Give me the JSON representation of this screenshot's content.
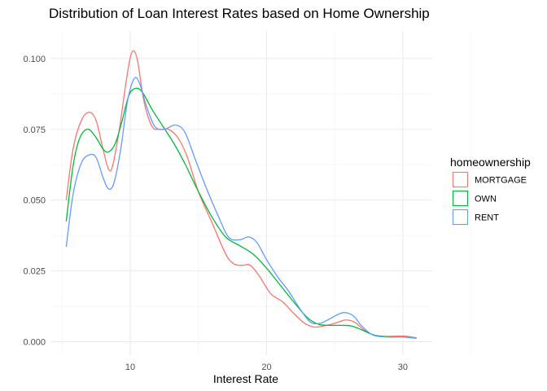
{
  "chart_data": {
    "type": "line",
    "title": "Distribution of Loan Interest Rates based on Home Ownership",
    "xlabel": "Interest Rate",
    "ylabel": "",
    "xlim": [
      5.3,
      31.0
    ],
    "ylim": [
      0.0,
      0.105
    ],
    "x_ticks": [
      10,
      20,
      30
    ],
    "y_ticks": [
      0.0,
      0.025,
      0.05,
      0.075,
      0.1
    ],
    "y_tick_labels": [
      "0.000",
      "0.025",
      "0.050",
      "0.075",
      "0.100"
    ],
    "grid": true,
    "legend": {
      "title": "homeownership",
      "placement": "right"
    },
    "series": [
      {
        "name": "MORTGAGE",
        "color": "#F8766D",
        "points": [
          [
            5.3,
            0.05
          ],
          [
            5.8,
            0.068
          ],
          [
            6.4,
            0.078
          ],
          [
            7.0,
            0.081
          ],
          [
            7.5,
            0.078
          ],
          [
            8.0,
            0.068
          ],
          [
            8.4,
            0.061
          ],
          [
            8.7,
            0.062
          ],
          [
            9.2,
            0.075
          ],
          [
            9.7,
            0.092
          ],
          [
            10.1,
            0.102
          ],
          [
            10.5,
            0.1
          ],
          [
            11.0,
            0.085
          ],
          [
            11.6,
            0.076
          ],
          [
            12.2,
            0.075
          ],
          [
            12.8,
            0.075
          ],
          [
            13.5,
            0.072
          ],
          [
            14.2,
            0.065
          ],
          [
            15.0,
            0.053
          ],
          [
            16.0,
            0.042
          ],
          [
            17.0,
            0.031
          ],
          [
            17.6,
            0.0275
          ],
          [
            18.2,
            0.027
          ],
          [
            18.8,
            0.027
          ],
          [
            19.5,
            0.023
          ],
          [
            20.3,
            0.017
          ],
          [
            21.2,
            0.014
          ],
          [
            22.0,
            0.01
          ],
          [
            22.8,
            0.0065
          ],
          [
            23.5,
            0.0052
          ],
          [
            24.2,
            0.0056
          ],
          [
            25.0,
            0.0065
          ],
          [
            25.8,
            0.0077
          ],
          [
            26.5,
            0.0068
          ],
          [
            27.2,
            0.004
          ],
          [
            28.0,
            0.0022
          ],
          [
            28.8,
            0.0019
          ],
          [
            29.5,
            0.002
          ],
          [
            30.2,
            0.002
          ],
          [
            31.0,
            0.0014
          ]
        ]
      },
      {
        "name": "OWN",
        "color": "#00BA38",
        "points": [
          [
            5.3,
            0.0425
          ],
          [
            5.8,
            0.062
          ],
          [
            6.3,
            0.072
          ],
          [
            6.9,
            0.075
          ],
          [
            7.5,
            0.072
          ],
          [
            8.0,
            0.068
          ],
          [
            8.4,
            0.067
          ],
          [
            8.9,
            0.07
          ],
          [
            9.4,
            0.078
          ],
          [
            9.9,
            0.087
          ],
          [
            10.4,
            0.0895
          ],
          [
            10.9,
            0.088
          ],
          [
            11.6,
            0.082
          ],
          [
            12.4,
            0.076
          ],
          [
            13.2,
            0.07
          ],
          [
            14.0,
            0.063
          ],
          [
            15.0,
            0.053
          ],
          [
            16.0,
            0.044
          ],
          [
            17.0,
            0.037
          ],
          [
            18.0,
            0.034
          ],
          [
            19.0,
            0.031
          ],
          [
            20.0,
            0.026
          ],
          [
            21.0,
            0.02
          ],
          [
            22.0,
            0.014
          ],
          [
            23.0,
            0.0085
          ],
          [
            23.8,
            0.0062
          ],
          [
            24.6,
            0.0058
          ],
          [
            25.4,
            0.0058
          ],
          [
            26.2,
            0.0056
          ],
          [
            27.0,
            0.0042
          ],
          [
            27.8,
            0.0025
          ],
          [
            28.8,
            0.0018
          ],
          [
            29.8,
            0.0017
          ],
          [
            30.5,
            0.0015
          ],
          [
            31.0,
            0.0012
          ]
        ]
      },
      {
        "name": "RENT",
        "color": "#619CFF",
        "points": [
          [
            5.3,
            0.0335
          ],
          [
            5.8,
            0.052
          ],
          [
            6.4,
            0.063
          ],
          [
            7.0,
            0.066
          ],
          [
            7.5,
            0.065
          ],
          [
            8.0,
            0.058
          ],
          [
            8.4,
            0.054
          ],
          [
            8.8,
            0.056
          ],
          [
            9.3,
            0.068
          ],
          [
            9.8,
            0.085
          ],
          [
            10.3,
            0.093
          ],
          [
            10.7,
            0.091
          ],
          [
            11.2,
            0.083
          ],
          [
            11.8,
            0.076
          ],
          [
            12.5,
            0.075
          ],
          [
            13.3,
            0.0765
          ],
          [
            14.0,
            0.074
          ],
          [
            14.8,
            0.064
          ],
          [
            15.6,
            0.054
          ],
          [
            16.4,
            0.045
          ],
          [
            17.2,
            0.037
          ],
          [
            18.0,
            0.036
          ],
          [
            18.7,
            0.037
          ],
          [
            19.3,
            0.035
          ],
          [
            20.0,
            0.029
          ],
          [
            20.8,
            0.023
          ],
          [
            21.6,
            0.018
          ],
          [
            22.4,
            0.012
          ],
          [
            23.2,
            0.007
          ],
          [
            23.9,
            0.0065
          ],
          [
            24.6,
            0.008
          ],
          [
            25.3,
            0.0098
          ],
          [
            25.8,
            0.0103
          ],
          [
            26.4,
            0.009
          ],
          [
            27.0,
            0.0055
          ],
          [
            27.8,
            0.0024
          ],
          [
            28.8,
            0.0017
          ],
          [
            29.8,
            0.0017
          ],
          [
            30.5,
            0.0015
          ],
          [
            31.0,
            0.0012
          ]
        ]
      }
    ]
  }
}
